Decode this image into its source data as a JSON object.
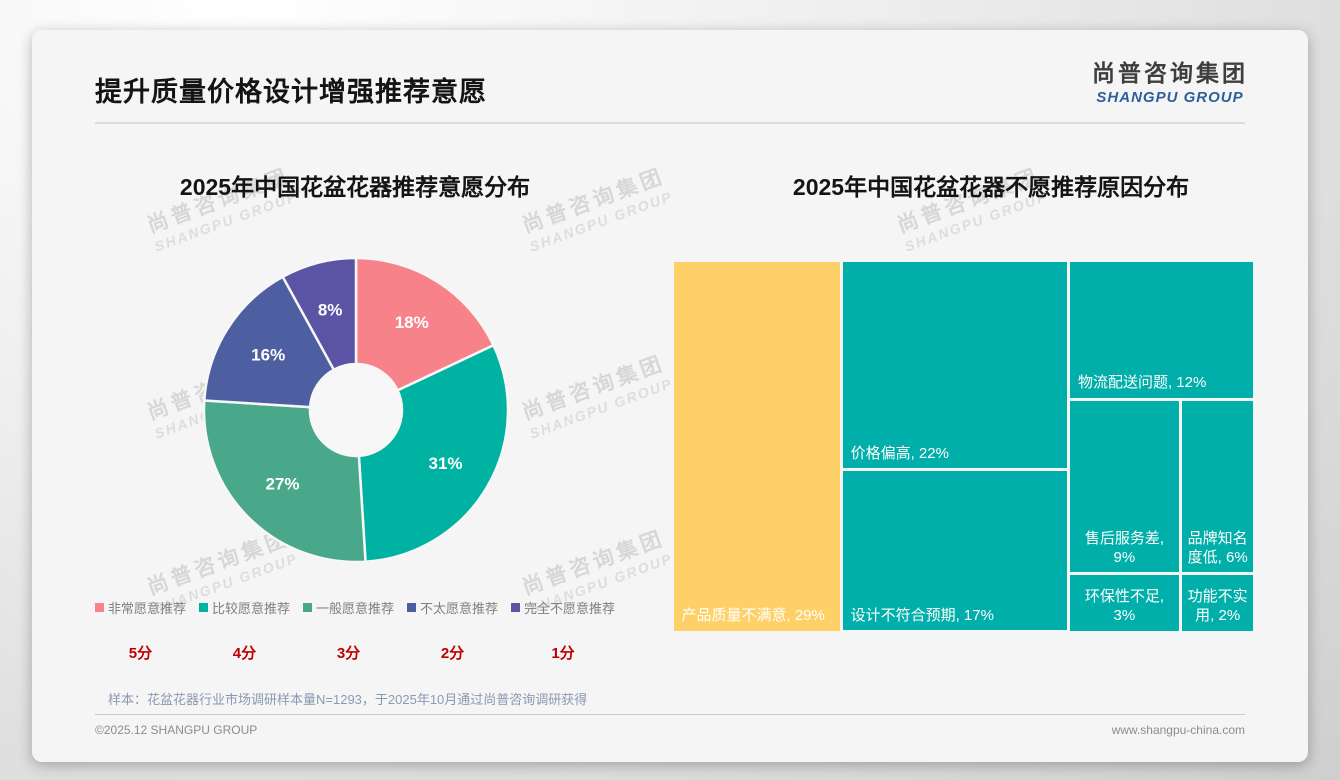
{
  "header": {
    "title": "提升质量价格设计增强推荐意愿"
  },
  "logo": {
    "cn": "尚普咨询集团",
    "en": "SHANGPU GROUP"
  },
  "watermark": {
    "line1": "尚普咨询集团",
    "line2": "SHANGPU GROUP"
  },
  "chart_data": [
    {
      "type": "pie",
      "subtype": "donut",
      "title": "2025年中国花盆花器推荐意愿分布",
      "labels": [
        "非常愿意推荐",
        "比较愿意推荐",
        "一般愿意推荐",
        "不太愿意推荐",
        "完全不愿意推荐"
      ],
      "values": [
        18,
        31,
        27,
        16,
        8
      ],
      "value_labels": [
        "18%",
        "31%",
        "27%",
        "16%",
        "8%"
      ],
      "colors": [
        "#F8828A",
        "#00B2A2",
        "#4AA88A",
        "#4D5FA1",
        "#5B53A4"
      ],
      "start_angle_deg": 0,
      "direction": "clockwise",
      "legend_position": "bottom",
      "score_labels": [
        "5分",
        "4分",
        "3分",
        "2分",
        "1分"
      ],
      "score_color": "#C00000"
    },
    {
      "type": "treemap",
      "title": "2025年中国花盆花器不愿推荐原因分布",
      "items": [
        {
          "label": "产品质量不满意",
          "value": 29,
          "display": "产品质量不满意, 29%",
          "color": "#FDD068"
        },
        {
          "label": "价格偏高",
          "value": 22,
          "display": "价格偏高, 22%",
          "color": "#00AFA9"
        },
        {
          "label": "设计不符合预期",
          "value": 17,
          "display": "设计不符合预期, 17%",
          "color": "#00AFA9"
        },
        {
          "label": "物流配送问题",
          "value": 12,
          "display": "物流配送问题, 12%",
          "color": "#00AFA9"
        },
        {
          "label": "售后服务差",
          "value": 9,
          "display": "售后服务差, 9%",
          "color": "#00AFA9"
        },
        {
          "label": "品牌知名度低",
          "value": 6,
          "display": "品牌知名度低, 6%",
          "color": "#00AFA9"
        },
        {
          "label": "环保性不足",
          "value": 3,
          "display": "环保性不足, 3%",
          "color": "#00AFA9"
        },
        {
          "label": "功能不实用",
          "value": 2,
          "display": "功能不实用, 2%",
          "color": "#00AFA9"
        }
      ]
    }
  ],
  "footnote": "样本：花盆花器行业市场调研样本量N=1293，于2025年10月通过尚普咨询调研获得",
  "footer": {
    "left": "©2025.12 SHANGPU GROUP",
    "right": "www.shangpu-china.com"
  }
}
